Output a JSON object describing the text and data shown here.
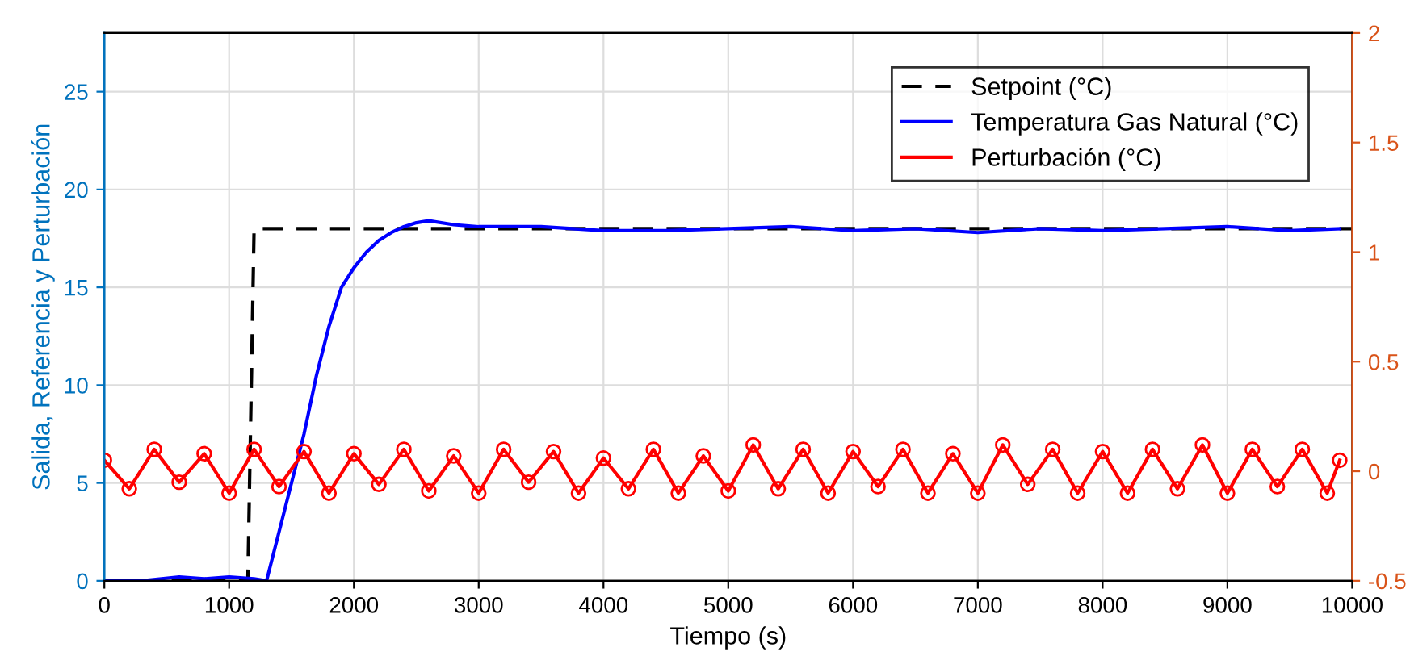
{
  "chart_data": {
    "type": "line",
    "xlabel": "Tiempo (s)",
    "ylabel": "Salida, Referencia y Perturbación",
    "xlim": [
      0,
      10000
    ],
    "xticks": [
      0,
      1000,
      2000,
      3000,
      4000,
      5000,
      6000,
      7000,
      8000,
      9000,
      10000
    ],
    "ylim": [
      0,
      28
    ],
    "yticks": [
      0,
      5,
      10,
      15,
      20,
      25
    ],
    "y2lim": [
      -0.5,
      2
    ],
    "y2ticks": [
      -0.5,
      0,
      0.5,
      1,
      1.5,
      2
    ],
    "grid": true,
    "legend": "top right",
    "series": [
      {
        "name": "Setpoint (°C)",
        "color": "#000000",
        "line_style": "dashed",
        "marker": "none",
        "x": [
          0,
          1150,
          1200,
          10000
        ],
        "values": [
          0,
          0,
          18,
          18
        ]
      },
      {
        "name": "Temperatura Gas Natural (°C)",
        "color": "#0000ff",
        "line_style": "solid",
        "marker": "none",
        "x": [
          0,
          300,
          600,
          800,
          1000,
          1200,
          1300,
          1400,
          1500,
          1600,
          1700,
          1800,
          1900,
          2000,
          2100,
          2200,
          2300,
          2400,
          2500,
          2600,
          2800,
          3000,
          3500,
          4000,
          4500,
          5000,
          5500,
          6000,
          6500,
          7000,
          7500,
          8000,
          8500,
          9000,
          9500,
          9900
        ],
        "values": [
          0,
          0,
          0.2,
          0.1,
          0.2,
          0.1,
          0,
          2.5,
          5,
          7.5,
          10.5,
          13,
          15,
          16,
          16.8,
          17.4,
          17.8,
          18.1,
          18.3,
          18.4,
          18.2,
          18.1,
          18.1,
          17.9,
          17.9,
          18,
          18.1,
          17.9,
          18,
          17.8,
          18,
          17.9,
          18,
          18.1,
          17.9,
          18
        ]
      },
      {
        "name": "Perturbación (°C)",
        "color": "#ff0000",
        "line_style": "solid",
        "marker": "circle",
        "axis": "y2",
        "x": [
          0,
          200,
          400,
          600,
          800,
          1000,
          1200,
          1400,
          1600,
          1800,
          2000,
          2200,
          2400,
          2600,
          2800,
          3000,
          3200,
          3400,
          3600,
          3800,
          4000,
          4200,
          4400,
          4600,
          4800,
          5000,
          5200,
          5400,
          5600,
          5800,
          6000,
          6200,
          6400,
          6600,
          6800,
          7000,
          7200,
          7400,
          7600,
          7800,
          8000,
          8200,
          8400,
          8600,
          8800,
          9000,
          9200,
          9400,
          9600,
          9800,
          9900
        ],
        "values": [
          0.05,
          -0.08,
          0.1,
          -0.05,
          0.08,
          -0.1,
          0.1,
          -0.07,
          0.09,
          -0.1,
          0.08,
          -0.06,
          0.1,
          -0.09,
          0.07,
          -0.1,
          0.1,
          -0.05,
          0.09,
          -0.1,
          0.06,
          -0.08,
          0.1,
          -0.1,
          0.07,
          -0.09,
          0.12,
          -0.08,
          0.1,
          -0.1,
          0.09,
          -0.07,
          0.1,
          -0.1,
          0.08,
          -0.1,
          0.12,
          -0.06,
          0.1,
          -0.1,
          0.09,
          -0.1,
          0.1,
          -0.08,
          0.12,
          -0.1,
          0.1,
          -0.07,
          0.1,
          -0.1,
          0.05
        ]
      }
    ]
  }
}
